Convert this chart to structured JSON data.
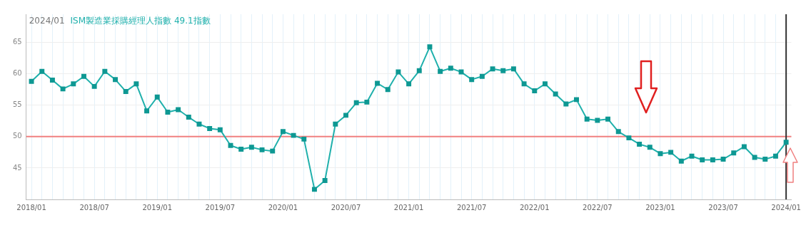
{
  "chart_data": {
    "type": "line",
    "title": "ISM製造業採購經理人指數 49.1指數",
    "subtitle": "2024/01",
    "categories": [
      "2018/01",
      null,
      null,
      null,
      null,
      null,
      "2018/07",
      null,
      null,
      null,
      null,
      null,
      "2019/01",
      null,
      null,
      null,
      null,
      null,
      "2019/07",
      null,
      null,
      null,
      null,
      null,
      "2020/01",
      null,
      null,
      null,
      null,
      null,
      "2020/07",
      null,
      null,
      null,
      null,
      null,
      "2021/01",
      null,
      null,
      null,
      null,
      null,
      "2021/07",
      null,
      null,
      null,
      null,
      null,
      "2022/01",
      null,
      null,
      null,
      null,
      null,
      "2022/07",
      null,
      null,
      null,
      null,
      null,
      "2023/01",
      null,
      null,
      null,
      null,
      null,
      "2023/07",
      null,
      null,
      null,
      null,
      null,
      "2024/01"
    ],
    "series": [
      {
        "color": "#1fb0ac",
        "values": [
          58.8,
          60.4,
          59.0,
          57.6,
          58.4,
          59.6,
          58.0,
          60.4,
          59.1,
          57.2,
          58.4,
          54.1,
          56.3,
          53.9,
          54.3,
          53.1,
          52.0,
          51.3,
          51.1,
          48.6,
          48.0,
          48.3,
          47.9,
          47.7,
          50.8,
          50.2,
          49.6,
          41.6,
          43.0,
          52.0,
          53.4,
          55.4,
          55.5,
          58.5,
          57.5,
          60.3,
          58.4,
          60.5,
          64.3,
          60.4,
          60.9,
          60.3,
          59.1,
          59.6,
          60.8,
          60.5,
          60.8,
          58.4,
          57.3,
          58.4,
          56.8,
          55.2,
          55.9,
          52.8,
          52.6,
          52.8,
          50.8,
          49.8,
          48.8,
          48.3,
          47.3,
          47.5,
          46.1,
          46.9,
          46.3,
          46.3,
          46.4,
          47.4,
          48.4,
          46.7,
          46.4,
          46.9,
          49.1
        ]
      }
    ],
    "ylim": [
      40,
      69.5
    ],
    "yticks": [
      45,
      50,
      55,
      60,
      65
    ],
    "grid": true,
    "marker": "square",
    "line_style": "solid",
    "legend": false,
    "ref_lines": [
      {
        "axis": "y",
        "value": 50,
        "color": "#f08080"
      },
      {
        "axis": "x",
        "value": "2024/01",
        "color": "#333333"
      }
    ]
  }
}
